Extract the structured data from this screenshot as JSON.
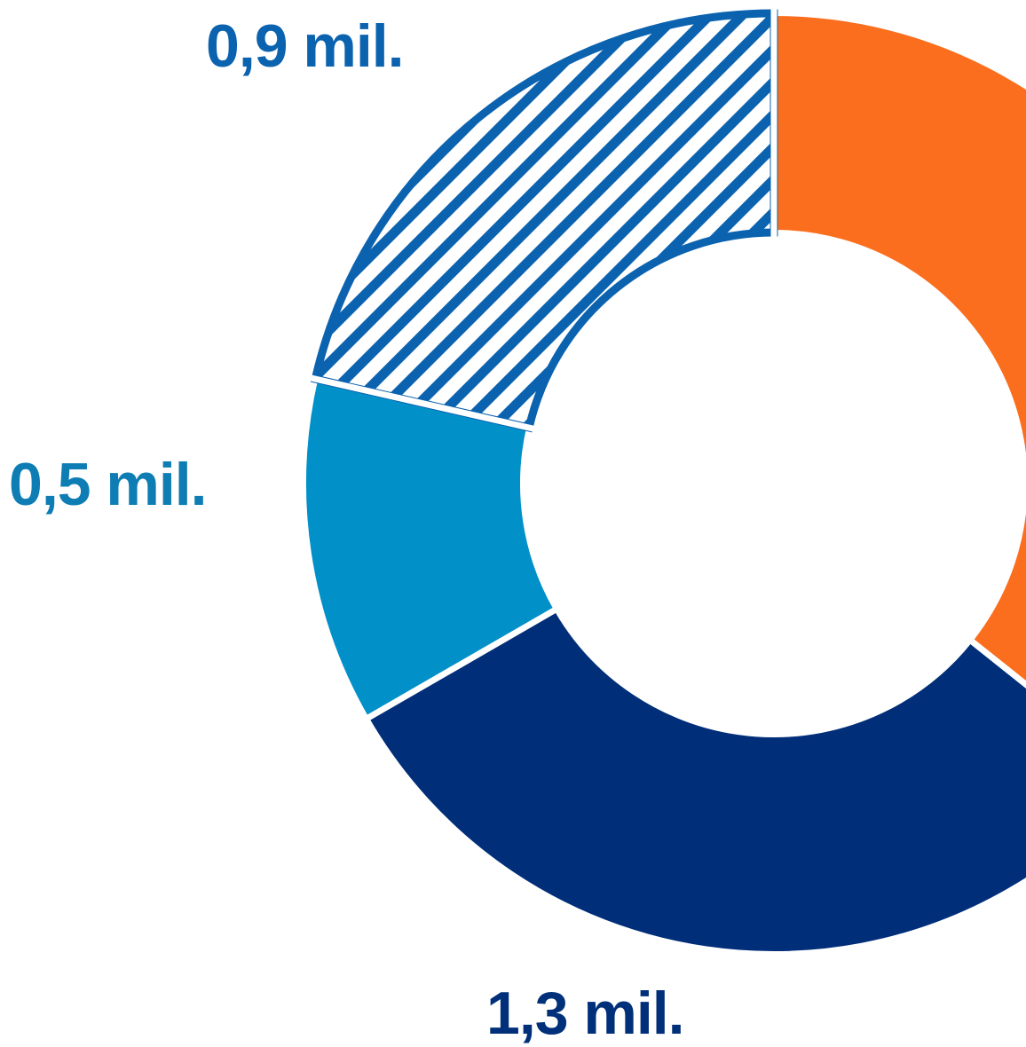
{
  "chart_data": {
    "type": "pie",
    "variant": "donut",
    "unit": "mil.",
    "slices": [
      {
        "value": 1.5,
        "label": "",
        "color": "#fb6e1d",
        "pattern": "solid"
      },
      {
        "value": 1.3,
        "label": "1,3 mil.",
        "color": "#002e79",
        "pattern": "solid"
      },
      {
        "value": 0.5,
        "label": "0,5 mil.",
        "color": "#0190c8",
        "pattern": "solid"
      },
      {
        "value": 0.9,
        "label": "0,9 mil.",
        "color": "#0b63b0",
        "pattern": "diagonal-hatch"
      }
    ]
  },
  "labels": {
    "top": "0,9 mil.",
    "left": "0,5 mil.",
    "bottom": "1,3 mil."
  }
}
